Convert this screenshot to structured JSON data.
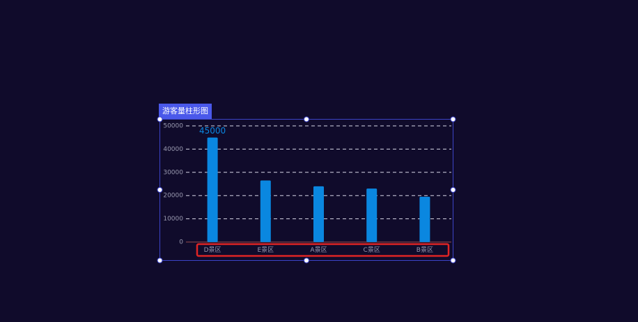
{
  "panel_label": "游客量柱形图",
  "chart_data": {
    "type": "bar",
    "categories": [
      "D景区",
      "E景区",
      "A景区",
      "C景区",
      "B景区"
    ],
    "values": [
      45000,
      26500,
      24000,
      23000,
      19500
    ],
    "color": "#0a87e0",
    "ylim": [
      0,
      50000
    ],
    "yticks": [
      0,
      10000,
      20000,
      30000,
      40000,
      50000
    ],
    "grid": true,
    "show_label": "max"
  }
}
